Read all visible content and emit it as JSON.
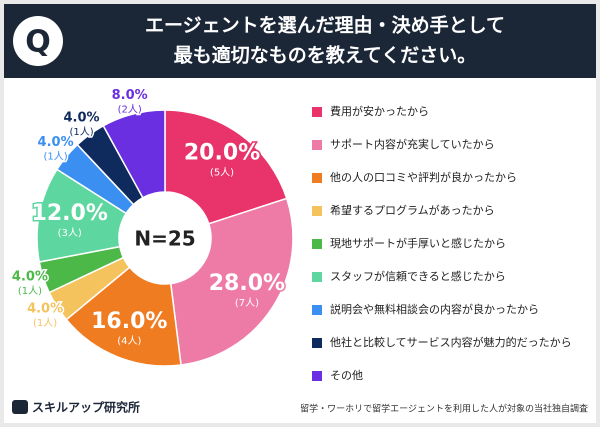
{
  "header": {
    "icon": "Q"
  },
  "chart_data": {
    "type": "donut",
    "title": [
      "エージェントを選んだ理由・決め手として",
      "最も適切なものを教えてください。"
    ],
    "center_label": "N=25",
    "categories": [
      "費用が安かったから",
      "サポート内容が充実していたから",
      "他の人の口コミや評判が良かったから",
      "希望するプログラムがあったから",
      "現地サポートが手厚いと感じたから",
      "スタッフが信頼できると感じたから",
      "説明会や無料相談会の内容が良かったから",
      "他社と比較してサービス内容が魅力的だったから",
      "その他"
    ],
    "values": [
      20.0,
      28.0,
      16.0,
      4.0,
      4.0,
      12.0,
      4.0,
      4.0,
      8.0
    ],
    "value_labels": [
      "20.0%",
      "28.0%",
      "16.0%",
      "4.0%",
      "4.0%",
      "12.0%",
      "4.0%",
      "4.0%",
      "8.0%"
    ],
    "count_labels": [
      "(5人)",
      "(7人)",
      "(4人)",
      "(1人)",
      "(1人)",
      "(3人)",
      "(1人)",
      "(1人)",
      "(2人)"
    ],
    "colors": [
      "#e8336b",
      "#ee7aa6",
      "#f07c22",
      "#f5c35e",
      "#4cb848",
      "#5ed6a0",
      "#3b8ff0",
      "#0f2a5c",
      "#6a2fe0"
    ],
    "legend": "right"
  },
  "footer": {
    "brand": "スキルアップ研究所",
    "note": "留学・ワーホリで留学エージェントを利用した人が対象の当社独自調査"
  }
}
